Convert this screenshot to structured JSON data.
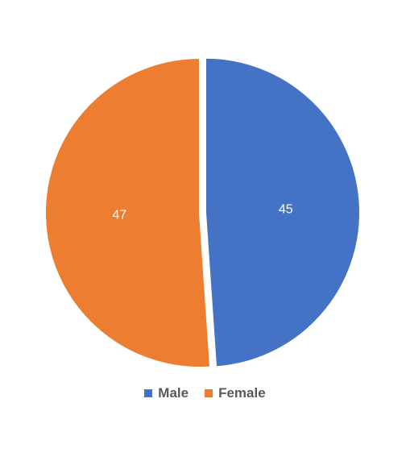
{
  "chart_data": {
    "type": "pie",
    "title": "",
    "categories": [
      "Male",
      "Female"
    ],
    "values": [
      45,
      47
    ],
    "colors": [
      "#4472C4",
      "#ED7D31"
    ],
    "data_labels": [
      "45",
      "47"
    ],
    "start_angle_deg": 0,
    "exploded_slice": "Male",
    "legend_position": "bottom",
    "legend": [
      {
        "label": "Male",
        "color": "#4472C4"
      },
      {
        "label": "Female",
        "color": "#ED7D31"
      }
    ]
  }
}
